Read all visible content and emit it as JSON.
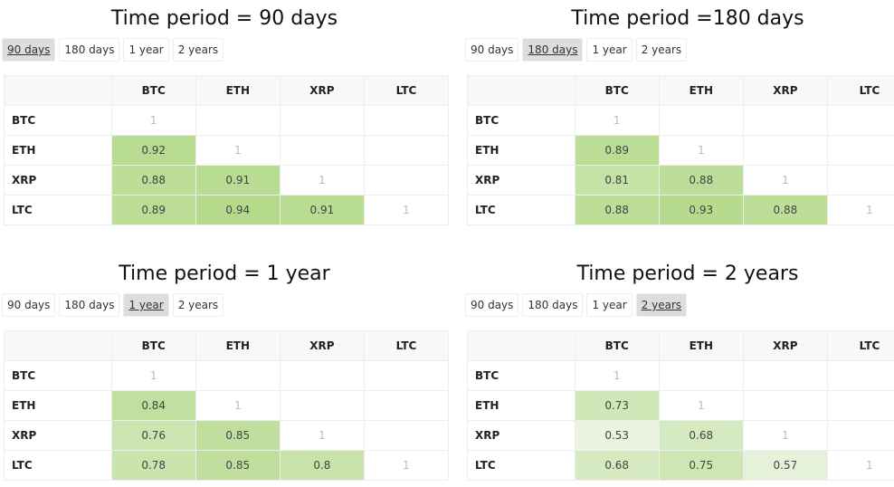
{
  "panels": [
    {
      "title": "Time period = 90 days",
      "tabs": [
        "90 days",
        "180 days",
        "1 year",
        "2 years"
      ],
      "active_tab": 0,
      "table": {
        "columns": [
          "BTC",
          "ETH",
          "XRP",
          "LTC"
        ],
        "rows": [
          {
            "label": "BTC",
            "values": [
              1,
              null,
              null,
              null
            ]
          },
          {
            "label": "ETH",
            "values": [
              0.92,
              1,
              null,
              null
            ]
          },
          {
            "label": "XRP",
            "values": [
              0.88,
              0.91,
              1,
              null
            ]
          },
          {
            "label": "LTC",
            "values": [
              0.89,
              0.94,
              0.91,
              1
            ]
          }
        ]
      }
    },
    {
      "title": "Time period =180 days",
      "tabs": [
        "90 days",
        "180 days",
        "1 year",
        "2 years"
      ],
      "active_tab": 1,
      "table": {
        "columns": [
          "BTC",
          "ETH",
          "XRP",
          "LTC"
        ],
        "rows": [
          {
            "label": "BTC",
            "values": [
              1,
              null,
              null,
              null
            ]
          },
          {
            "label": "ETH",
            "values": [
              0.89,
              1,
              null,
              null
            ]
          },
          {
            "label": "XRP",
            "values": [
              0.81,
              0.88,
              1,
              null
            ]
          },
          {
            "label": "LTC",
            "values": [
              0.88,
              0.93,
              0.88,
              1
            ]
          }
        ]
      }
    },
    {
      "title": "Time period = 1 year",
      "tabs": [
        "90 days",
        "180 days",
        "1 year",
        "2 years"
      ],
      "active_tab": 2,
      "table": {
        "columns": [
          "BTC",
          "ETH",
          "XRP",
          "LTC"
        ],
        "rows": [
          {
            "label": "BTC",
            "values": [
              1,
              null,
              null,
              null
            ]
          },
          {
            "label": "ETH",
            "values": [
              0.84,
              1,
              null,
              null
            ]
          },
          {
            "label": "XRP",
            "values": [
              0.76,
              0.85,
              1,
              null
            ]
          },
          {
            "label": "LTC",
            "values": [
              0.78,
              0.85,
              0.8,
              1
            ]
          }
        ]
      }
    },
    {
      "title": "Time period = 2 years",
      "tabs": [
        "90 days",
        "180 days",
        "1 year",
        "2 years"
      ],
      "active_tab": 3,
      "table": {
        "columns": [
          "BTC",
          "ETH",
          "XRP",
          "LTC"
        ],
        "rows": [
          {
            "label": "BTC",
            "values": [
              1,
              null,
              null,
              null
            ]
          },
          {
            "label": "ETH",
            "values": [
              0.73,
              1,
              null,
              null
            ]
          },
          {
            "label": "XRP",
            "values": [
              0.53,
              0.68,
              1,
              null
            ]
          },
          {
            "label": "LTC",
            "values": [
              0.68,
              0.75,
              0.57,
              1
            ]
          }
        ]
      }
    }
  ]
}
